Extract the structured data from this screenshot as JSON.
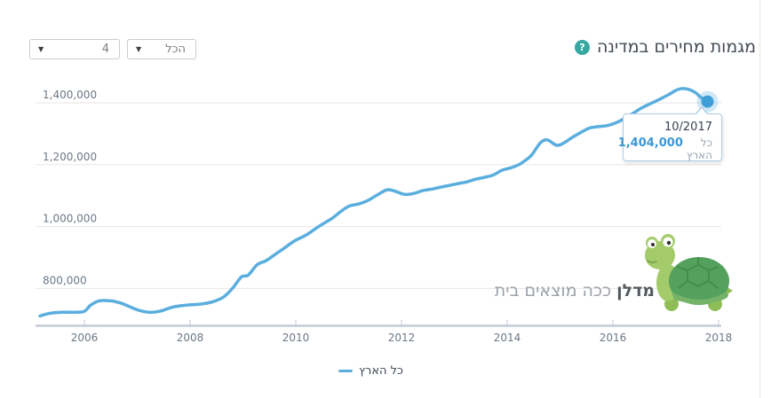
{
  "header": {
    "title": "מגמות מחירים במדינה",
    "help_glyph": "?"
  },
  "filters": {
    "rooms_value": "4",
    "type_value": "הכל",
    "arrow_glyph": "▼"
  },
  "chart_data": {
    "type": "line",
    "title": "מגמות מחירים במדינה",
    "xlabel": "",
    "ylabel": "",
    "grid": true,
    "legend_position": "bottom-center",
    "x_range": [
      2005.1,
      2018.2
    ],
    "x_ticks": [
      2006,
      2008,
      2010,
      2012,
      2014,
      2016,
      2018
    ],
    "y_ticks": [
      800000,
      1000000,
      1200000,
      1400000
    ],
    "series": [
      {
        "name": "כל הארץ",
        "color": "#5aaede",
        "points": [
          [
            2005.16,
            711000
          ],
          [
            2005.33,
            719000
          ],
          [
            2005.58,
            723000
          ],
          [
            2005.83,
            723000
          ],
          [
            2006.0,
            726000
          ],
          [
            2006.12,
            746000
          ],
          [
            2006.28,
            760000
          ],
          [
            2006.5,
            760000
          ],
          [
            2006.62,
            756000
          ],
          [
            2006.75,
            749000
          ],
          [
            2007.0,
            731000
          ],
          [
            2007.22,
            723000
          ],
          [
            2007.42,
            726000
          ],
          [
            2007.68,
            740000
          ],
          [
            2007.93,
            746000
          ],
          [
            2008.18,
            749000
          ],
          [
            2008.43,
            757000
          ],
          [
            2008.63,
            772000
          ],
          [
            2008.8,
            800000
          ],
          [
            2008.97,
            837000
          ],
          [
            2009.1,
            843000
          ],
          [
            2009.27,
            877000
          ],
          [
            2009.43,
            889000
          ],
          [
            2009.6,
            909000
          ],
          [
            2009.77,
            929000
          ],
          [
            2009.99,
            955000
          ],
          [
            2010.19,
            972000
          ],
          [
            2010.44,
            1001000
          ],
          [
            2010.69,
            1027000
          ],
          [
            2010.86,
            1050000
          ],
          [
            2011.02,
            1067000
          ],
          [
            2011.19,
            1073000
          ],
          [
            2011.36,
            1084000
          ],
          [
            2011.53,
            1101000
          ],
          [
            2011.73,
            1119000
          ],
          [
            2011.9,
            1113000
          ],
          [
            2012.06,
            1104000
          ],
          [
            2012.23,
            1107000
          ],
          [
            2012.4,
            1116000
          ],
          [
            2012.57,
            1121000
          ],
          [
            2012.73,
            1127000
          ],
          [
            2012.9,
            1133000
          ],
          [
            2013.07,
            1139000
          ],
          [
            2013.23,
            1144000
          ],
          [
            2013.4,
            1153000
          ],
          [
            2013.57,
            1159000
          ],
          [
            2013.74,
            1167000
          ],
          [
            2013.9,
            1182000
          ],
          [
            2014.07,
            1190000
          ],
          [
            2014.21,
            1199000
          ],
          [
            2014.32,
            1211000
          ],
          [
            2014.46,
            1231000
          ],
          [
            2014.63,
            1271000
          ],
          [
            2014.76,
            1280000
          ],
          [
            2014.93,
            1263000
          ],
          [
            2015.06,
            1269000
          ],
          [
            2015.21,
            1286000
          ],
          [
            2015.38,
            1303000
          ],
          [
            2015.55,
            1318000
          ],
          [
            2015.71,
            1323000
          ],
          [
            2015.88,
            1326000
          ],
          [
            2016.05,
            1335000
          ],
          [
            2016.22,
            1349000
          ],
          [
            2016.38,
            1366000
          ],
          [
            2016.55,
            1384000
          ],
          [
            2016.72,
            1398000
          ],
          [
            2016.89,
            1412000
          ],
          [
            2017.05,
            1426000
          ],
          [
            2017.19,
            1440000
          ],
          [
            2017.31,
            1446000
          ],
          [
            2017.44,
            1443000
          ],
          [
            2017.57,
            1432000
          ],
          [
            2017.66,
            1418000
          ],
          [
            2017.79,
            1404000
          ]
        ]
      }
    ],
    "marker": {
      "x": 2017.79,
      "y": 1404000
    }
  },
  "tooltip": {
    "date": "10/2017",
    "value": "1,404,000",
    "series_label": "כל הארץ"
  },
  "legend": {
    "label": "כל הארץ"
  },
  "watermark": {
    "brand": "מדלן",
    "tagline": "ככה מוצאים בית"
  },
  "colors": {
    "line": "#5aaede",
    "marker_dot": "#3d9ed8",
    "marker_halo": "rgba(90,174,222,0.28)",
    "help_teal": "#36a89f",
    "tooltip_value_blue": "#3d96d4",
    "gridline": "#e6e6e6",
    "axis_band": "#ccd3de",
    "axis_text": "#6d7886"
  }
}
